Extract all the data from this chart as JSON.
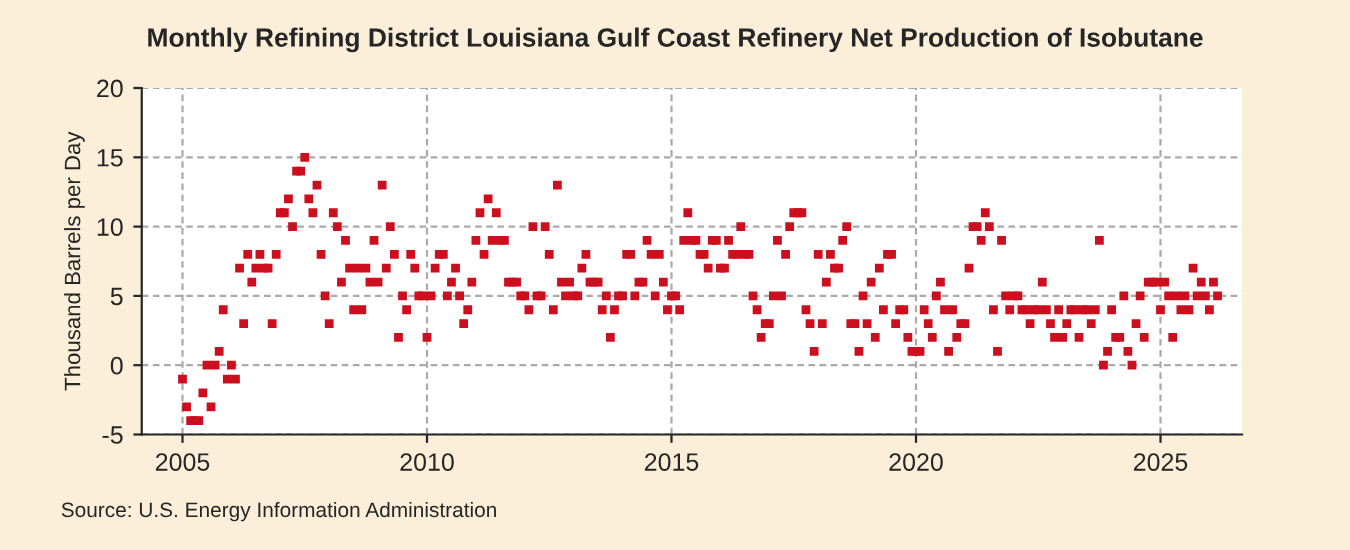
{
  "chart_data": {
    "type": "scatter",
    "title": "Monthly Refining District Louisiana Gulf Coast Refinery Net Production of Isobutane",
    "ylabel": "Thousand Barrels per Day",
    "annotations": [
      "Source: U.S. Energy Information Administration"
    ],
    "xlim": [
      "2004-03",
      "2026-09"
    ],
    "xticks": [
      "2005",
      "2010",
      "2015",
      "2020",
      "2025"
    ],
    "ylim": [
      -5,
      20
    ],
    "yticks": [
      -5,
      0,
      5,
      10,
      15,
      20
    ],
    "grid": true,
    "marker": "square",
    "legend": false,
    "series": [
      {
        "color": "#cc0f1f",
        "x": [
          "2005-01",
          "2005-02",
          "2005-03",
          "2005-04",
          "2005-05",
          "2005-06",
          "2005-07",
          "2005-08",
          "2005-09",
          "2005-10",
          "2005-11",
          "2005-12",
          "2006-01",
          "2006-02",
          "2006-03",
          "2006-04",
          "2006-05",
          "2006-06",
          "2006-07",
          "2006-08",
          "2006-09",
          "2006-10",
          "2006-11",
          "2006-12",
          "2007-01",
          "2007-02",
          "2007-03",
          "2007-04",
          "2007-05",
          "2007-06",
          "2007-07",
          "2007-08",
          "2007-09",
          "2007-10",
          "2007-11",
          "2007-12",
          "2008-01",
          "2008-02",
          "2008-03",
          "2008-04",
          "2008-05",
          "2008-06",
          "2008-07",
          "2008-08",
          "2008-09",
          "2008-10",
          "2008-11",
          "2008-12",
          "2009-01",
          "2009-02",
          "2009-03",
          "2009-04",
          "2009-05",
          "2009-06",
          "2009-07",
          "2009-08",
          "2009-09",
          "2009-10",
          "2009-11",
          "2009-12",
          "2010-01",
          "2010-02",
          "2010-03",
          "2010-04",
          "2010-05",
          "2010-06",
          "2010-07",
          "2010-08",
          "2010-09",
          "2010-10",
          "2010-11",
          "2010-12",
          "2011-01",
          "2011-02",
          "2011-03",
          "2011-04",
          "2011-05",
          "2011-06",
          "2011-07",
          "2011-08",
          "2011-09",
          "2011-10",
          "2011-11",
          "2011-12",
          "2012-01",
          "2012-02",
          "2012-03",
          "2012-04",
          "2012-05",
          "2012-06",
          "2012-07",
          "2012-08",
          "2012-09",
          "2012-10",
          "2012-11",
          "2012-12",
          "2013-01",
          "2013-02",
          "2013-03",
          "2013-04",
          "2013-05",
          "2013-06",
          "2013-07",
          "2013-08",
          "2013-09",
          "2013-10",
          "2013-11",
          "2013-12",
          "2014-01",
          "2014-02",
          "2014-03",
          "2014-04",
          "2014-05",
          "2014-06",
          "2014-07",
          "2014-08",
          "2014-09",
          "2014-10",
          "2014-11",
          "2014-12",
          "2015-01",
          "2015-02",
          "2015-03",
          "2015-04",
          "2015-05",
          "2015-06",
          "2015-07",
          "2015-08",
          "2015-09",
          "2015-10",
          "2015-11",
          "2015-12",
          "2016-01",
          "2016-02",
          "2016-03",
          "2016-04",
          "2016-05",
          "2016-06",
          "2016-07",
          "2016-08",
          "2016-09",
          "2016-10",
          "2016-11",
          "2016-12",
          "2017-01",
          "2017-02",
          "2017-03",
          "2017-04",
          "2017-05",
          "2017-06",
          "2017-07",
          "2017-08",
          "2017-09",
          "2017-10",
          "2017-11",
          "2017-12",
          "2018-01",
          "2018-02",
          "2018-03",
          "2018-04",
          "2018-05",
          "2018-06",
          "2018-07",
          "2018-08",
          "2018-09",
          "2018-10",
          "2018-11",
          "2018-12",
          "2019-01",
          "2019-02",
          "2019-03",
          "2019-04",
          "2019-05",
          "2019-06",
          "2019-07",
          "2019-08",
          "2019-09",
          "2019-10",
          "2019-11",
          "2019-12",
          "2020-01",
          "2020-02",
          "2020-03",
          "2020-04",
          "2020-05",
          "2020-06",
          "2020-07",
          "2020-08",
          "2020-09",
          "2020-10",
          "2020-11",
          "2020-12",
          "2021-01",
          "2021-02",
          "2021-03",
          "2021-04",
          "2021-05",
          "2021-06",
          "2021-07",
          "2021-08",
          "2021-09",
          "2021-10",
          "2021-11",
          "2021-12",
          "2022-01",
          "2022-02",
          "2022-03",
          "2022-04",
          "2022-05",
          "2022-06",
          "2022-07",
          "2022-08",
          "2022-09",
          "2022-10",
          "2022-11",
          "2022-12",
          "2023-01",
          "2023-02",
          "2023-03",
          "2023-04",
          "2023-05",
          "2023-06",
          "2023-07",
          "2023-08",
          "2023-09",
          "2023-10",
          "2023-11",
          "2023-12",
          "2024-01",
          "2024-02",
          "2024-03",
          "2024-04",
          "2024-05",
          "2024-06",
          "2024-07",
          "2024-08",
          "2024-09",
          "2024-10",
          "2024-11",
          "2024-12",
          "2025-01",
          "2025-02",
          "2025-03",
          "2025-04",
          "2025-05",
          "2025-06",
          "2025-07",
          "2025-08",
          "2025-09",
          "2025-10",
          "2025-11",
          "2025-12",
          "2026-01",
          "2026-02",
          "2026-03"
        ],
        "values": [
          -1,
          -3,
          -4,
          -4,
          -4,
          -2,
          0,
          -3,
          0,
          1,
          4,
          -1,
          0,
          -1,
          7,
          3,
          8,
          6,
          7,
          8,
          7,
          7,
          3,
          8,
          11,
          11,
          12,
          10,
          14,
          14,
          15,
          12,
          11,
          13,
          8,
          5,
          3,
          11,
          10,
          6,
          9,
          7,
          4,
          7,
          4,
          7,
          6,
          9,
          6,
          13,
          7,
          10,
          8,
          2,
          5,
          4,
          8,
          7,
          5,
          5,
          2,
          5,
          7,
          8,
          8,
          5,
          6,
          7,
          5,
          3,
          4,
          6,
          9,
          11,
          8,
          12,
          9,
          11,
          9,
          9,
          6,
          6,
          6,
          5,
          5,
          4,
          10,
          5,
          5,
          10,
          8,
          4,
          13,
          6,
          5,
          6,
          5,
          5,
          7,
          8,
          6,
          6,
          6,
          4,
          5,
          2,
          4,
          5,
          5,
          8,
          8,
          5,
          6,
          6,
          9,
          8,
          5,
          8,
          6,
          4,
          5,
          5,
          4,
          9,
          11,
          9,
          9,
          8,
          8,
          7,
          9,
          9,
          7,
          7,
          9,
          8,
          8,
          10,
          8,
          8,
          5,
          4,
          2,
          3,
          3,
          5,
          9,
          5,
          8,
          10,
          11,
          11,
          11,
          4,
          3,
          1,
          8,
          3,
          6,
          8,
          7,
          7,
          9,
          10,
          3,
          3,
          1,
          5,
          3,
          6,
          2,
          7,
          4,
          8,
          8,
          3,
          4,
          4,
          2,
          1,
          1,
          1,
          4,
          3,
          2,
          5,
          6,
          4,
          1,
          4,
          2,
          3,
          3,
          7,
          10,
          10,
          9,
          11,
          10,
          4,
          1,
          9,
          5,
          4,
          5,
          5,
          4,
          4,
          3,
          4,
          4,
          6,
          4,
          3,
          2,
          4,
          2,
          3,
          4,
          4,
          2,
          4,
          4,
          3,
          4,
          9,
          0,
          1,
          4,
          2,
          2,
          5,
          1,
          0,
          3,
          5,
          2,
          6,
          6,
          6,
          4,
          6,
          5,
          2,
          5,
          4,
          5,
          4,
          7,
          5,
          6,
          5,
          4,
          6,
          5
        ]
      }
    ]
  }
}
